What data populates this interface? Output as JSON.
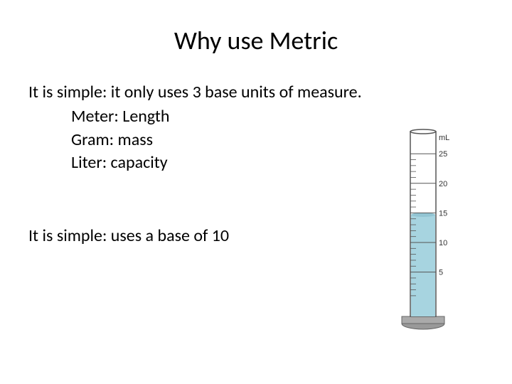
{
  "title": "Why use Metric",
  "intro": "It is simple: it only uses 3 base units of measure.",
  "units": [
    "Meter: Length",
    "Gram: mass",
    "Liter: capacity"
  ],
  "second_point": "It is simple: uses a base of 10",
  "cylinder": {
    "unit_label": "mL",
    "tick_labels": [
      "25",
      "20",
      "15",
      "10",
      "5"
    ],
    "tick_positions_y": [
      0.12,
      0.28,
      0.44,
      0.6,
      0.76
    ],
    "liquid_fill_level": 0.55,
    "liquid_color": "#a7d4e0",
    "cylinder_border": "#555555",
    "base_color": "#888888",
    "text_color": "#333333",
    "label_fontsize": 11
  },
  "colors": {
    "background": "#ffffff",
    "text": "#000000"
  },
  "fonts": {
    "title_size": 36,
    "body_size": 24,
    "family": "Calibri"
  }
}
